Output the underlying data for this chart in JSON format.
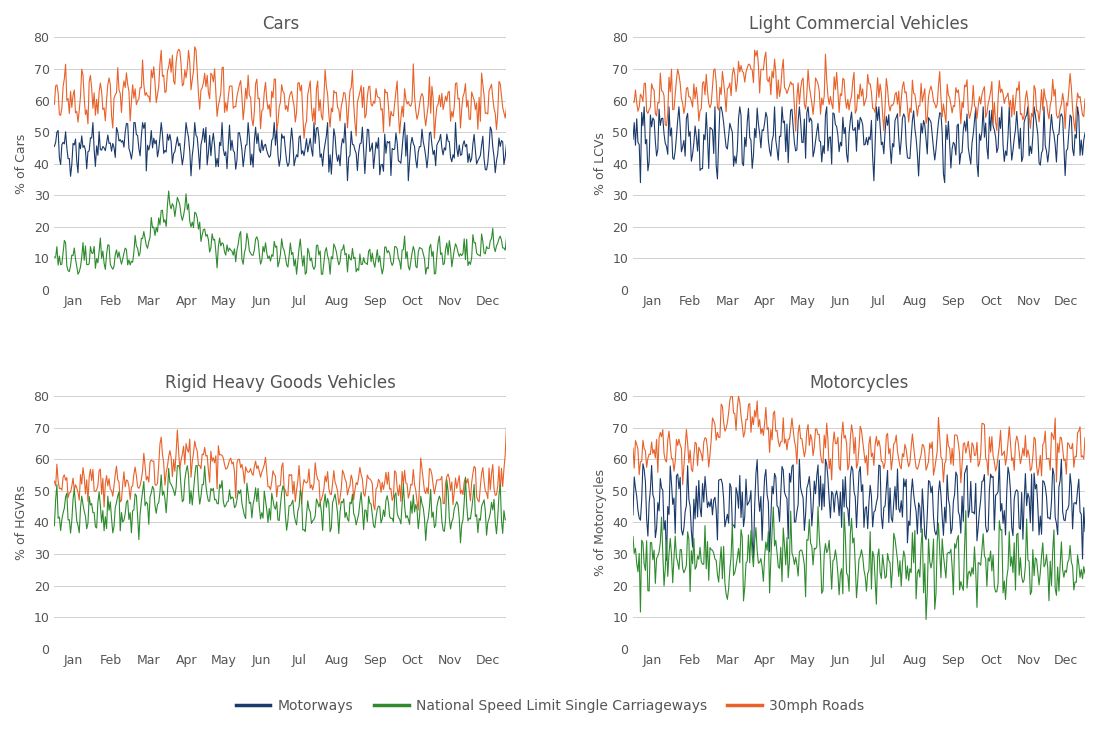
{
  "titles": [
    "Cars",
    "Light Commercial Vehicles",
    "Rigid Heavy Goods Vehicles",
    "Motorcycles"
  ],
  "ylabel_list": [
    "% of Cars",
    "% of LCVs",
    "% of HGVRs",
    "% of Motorcycles"
  ],
  "months": [
    "Jan",
    "Feb",
    "Mar",
    "Apr",
    "May",
    "Jun",
    "Jul",
    "Aug",
    "Sep",
    "Oct",
    "Nov",
    "Dec"
  ],
  "colors": {
    "motorways": "#1a3a6b",
    "nsl": "#2e8b2e",
    "roads30": "#e8622a"
  },
  "legend_labels": [
    "Motorways",
    "National Speed Limit Single Carriageways",
    "30mph Roads"
  ],
  "ylim": [
    0,
    80
  ],
  "yticks": [
    0,
    10,
    20,
    30,
    40,
    50,
    60,
    70,
    80
  ],
  "background": "#ffffff",
  "grid_color": "#d0d0d0"
}
